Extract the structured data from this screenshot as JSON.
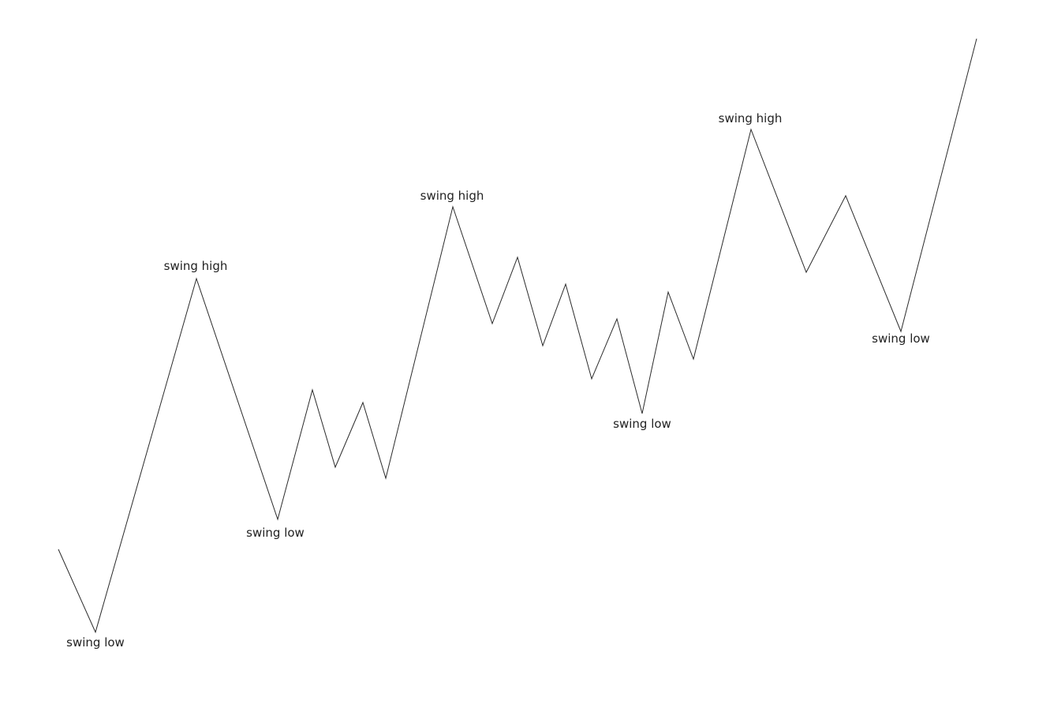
{
  "diagram": {
    "line_color": "#2b2b2b",
    "label_color": "#222222",
    "background": "#ffffff",
    "labels": [
      {
        "id": "low-1",
        "text": "swing low",
        "kind": "low"
      },
      {
        "id": "high-1",
        "text": "swing high",
        "kind": "high"
      },
      {
        "id": "low-2",
        "text": "swing low",
        "kind": "low"
      },
      {
        "id": "high-2",
        "text": "swing high",
        "kind": "high"
      },
      {
        "id": "low-3",
        "text": "swing low",
        "kind": "low"
      },
      {
        "id": "high-3",
        "text": "swing high",
        "kind": "high"
      },
      {
        "id": "low-4",
        "text": "swing low",
        "kind": "low"
      }
    ]
  }
}
